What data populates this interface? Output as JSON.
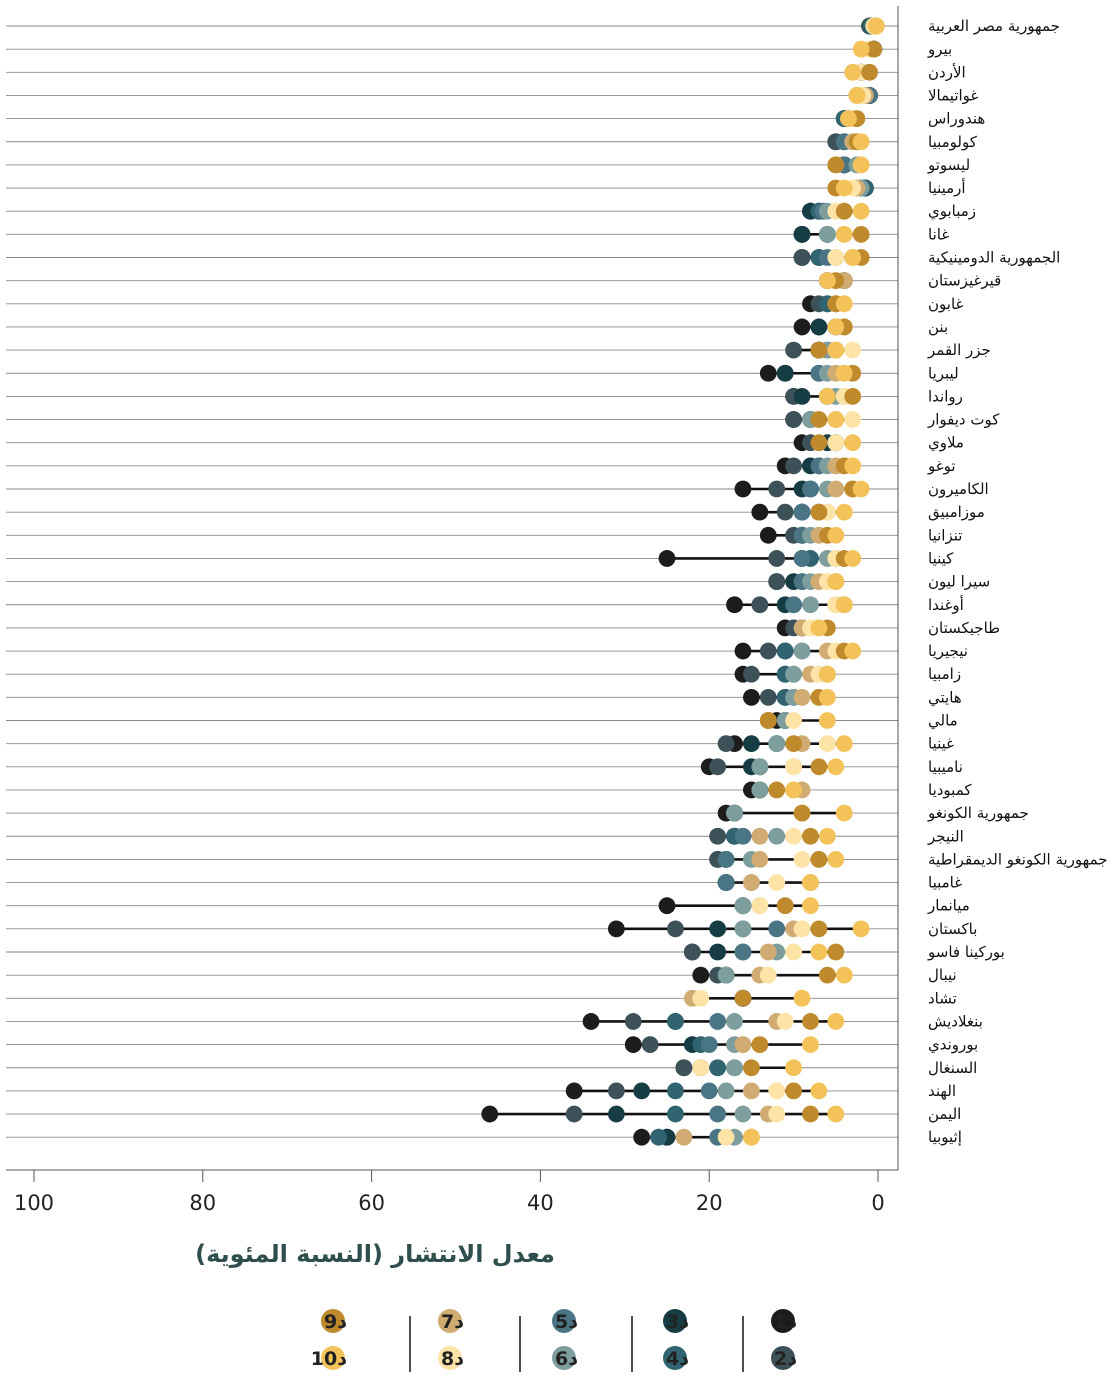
{
  "chart_data": {
    "type": "dot-range",
    "xlabel": "معدل الانتشار (النسبة المئوية)",
    "xlim": [
      0,
      100
    ],
    "x_reversed": true,
    "ticks": [
      100,
      80,
      60,
      40,
      20,
      0
    ],
    "decile_labels": [
      "د1",
      "د2",
      "د3",
      "د4",
      "د5",
      "د6",
      "د7",
      "د8",
      "د9",
      "د10"
    ],
    "decile_colors": [
      "#1c1c1c",
      "#3d5158",
      "#163d44",
      "#2f6470",
      "#4a7585",
      "#7d9e9c",
      "#d0ab72",
      "#fde3a6",
      "#bf8a2c",
      "#f3c35a"
    ],
    "countries": [
      {
        "name": "جمهورية مصر العربية",
        "values": [
          1,
          1,
          0.8,
          0.8,
          0.5,
          0.5,
          0.5,
          0.5,
          0.2,
          0.2
        ]
      },
      {
        "name": "بيرو",
        "values": [
          0.5,
          0.5,
          0.5,
          0.5,
          0.5,
          0.5,
          1,
          1,
          0.5,
          2
        ]
      },
      {
        "name": "الأردن",
        "values": [
          2,
          2,
          2,
          2,
          2,
          2,
          2,
          2,
          1,
          3
        ]
      },
      {
        "name": "غواتيمالا",
        "values": [
          1,
          1,
          1,
          1,
          1,
          1.5,
          1.5,
          1.8,
          2.5,
          2.5
        ]
      },
      {
        "name": "هندوراس",
        "values": [
          4,
          4,
          4,
          4,
          3.5,
          3.5,
          3,
          3,
          2.5,
          3.5
        ]
      },
      {
        "name": "كولومبيا",
        "values": [
          5,
          5,
          4,
          4,
          4,
          3,
          3,
          2.5,
          2.5,
          2
        ]
      },
      {
        "name": "ليسوتو",
        "values": [
          4,
          4,
          4,
          4,
          4,
          2.5,
          5,
          2,
          5,
          2
        ]
      },
      {
        "name": "أرمينيا",
        "values": [
          1.5,
          1.5,
          1.5,
          1.5,
          2,
          2,
          2.5,
          3,
          5,
          4
        ]
      },
      {
        "name": "زمبابوي",
        "values": [
          8,
          7,
          8,
          7,
          6.5,
          6,
          4,
          5,
          4,
          2
        ]
      },
      {
        "name": "غانا",
        "values": [
          9,
          9,
          9,
          6,
          6,
          6,
          4,
          4,
          2,
          4
        ]
      },
      {
        "name": "الجمهورية الدومينيكية",
        "values": [
          9,
          9,
          7,
          7,
          6,
          5,
          3,
          5,
          2,
          3
        ]
      },
      {
        "name": "قيرغيزستان",
        "values": [
          6,
          6,
          4,
          4,
          4,
          4,
          4,
          5,
          5,
          6
        ]
      },
      {
        "name": "غابون",
        "values": [
          8,
          7,
          6,
          6,
          5,
          5,
          5,
          4,
          5,
          4
        ]
      },
      {
        "name": "بنن",
        "values": [
          9,
          7,
          7,
          5,
          5,
          5,
          4,
          4,
          4,
          5
        ]
      },
      {
        "name": "جزر القمر",
        "values": [
          7,
          10,
          7,
          7,
          6,
          6,
          5,
          3,
          7,
          5
        ]
      },
      {
        "name": "ليبريا",
        "values": [
          13,
          11,
          11,
          7,
          7,
          6,
          5,
          4,
          3,
          4
        ]
      },
      {
        "name": "رواندا",
        "values": [
          10,
          10,
          9,
          6,
          6,
          5,
          4,
          4,
          3,
          6
        ]
      },
      {
        "name": "كوت ديفوار",
        "values": [
          10,
          10,
          8,
          8,
          8,
          8,
          5,
          3,
          7,
          5
        ]
      },
      {
        "name": "ملاوي",
        "values": [
          9,
          8,
          6,
          5,
          5,
          5,
          5,
          5,
          7,
          3
        ]
      },
      {
        "name": "توغو",
        "values": [
          11,
          10,
          8,
          7,
          7,
          6,
          5,
          3,
          4,
          3
        ]
      },
      {
        "name": "الكاميرون",
        "values": [
          16,
          12,
          9,
          8,
          8,
          6,
          5,
          3,
          3,
          2
        ]
      },
      {
        "name": "موزامبيق",
        "values": [
          14,
          11,
          9,
          9,
          9,
          7,
          7,
          6,
          7,
          4
        ]
      },
      {
        "name": "تنزانيا",
        "values": [
          13,
          10,
          9,
          9,
          9,
          8,
          7,
          6,
          6,
          5
        ]
      },
      {
        "name": "كينيا",
        "values": [
          25,
          12,
          9,
          8,
          9,
          6,
          5,
          5,
          4,
          3
        ]
      },
      {
        "name": "سيرا ليون",
        "values": [
          12,
          12,
          10,
          9,
          9,
          8,
          7,
          6,
          5,
          5
        ]
      },
      {
        "name": "أوغندا",
        "values": [
          17,
          14,
          11,
          10,
          10,
          8,
          5,
          5,
          4,
          4
        ]
      },
      {
        "name": "طاجيكستان",
        "values": [
          11,
          10,
          9,
          9,
          9,
          9,
          9,
          8,
          6,
          7
        ]
      },
      {
        "name": "نيجيريا",
        "values": [
          16,
          13,
          11,
          11,
          9,
          9,
          6,
          5,
          4,
          3
        ]
      },
      {
        "name": "زامبيا",
        "values": [
          16,
          15,
          11,
          11,
          10,
          10,
          8,
          7,
          6,
          6
        ]
      },
      {
        "name": "هايتي",
        "values": [
          15,
          13,
          11,
          11,
          10,
          10,
          9,
          7,
          7,
          6
        ]
      },
      {
        "name": "مالي",
        "values": [
          12,
          13,
          11,
          11,
          11,
          11,
          13,
          10,
          13,
          6
        ]
      },
      {
        "name": "غينيا",
        "values": [
          17,
          18,
          15,
          12,
          12,
          12,
          9,
          6,
          10,
          4
        ]
      },
      {
        "name": "ناميبيا",
        "values": [
          20,
          19,
          15,
          14,
          14,
          14,
          10,
          10,
          7,
          5
        ]
      },
      {
        "name": "كمبوديا",
        "values": [
          15,
          14,
          14,
          14,
          14,
          14,
          9,
          10,
          12,
          10
        ]
      },
      {
        "name": "جمهورية الكونغو",
        "values": [
          18,
          17,
          17,
          17,
          17,
          17,
          9,
          9,
          9,
          4
        ]
      },
      {
        "name": "النيجر",
        "values": [
          17,
          19,
          17,
          17,
          16,
          12,
          14,
          10,
          8,
          6
        ]
      },
      {
        "name": "جمهورية الكونغو الديمقراطية",
        "values": [
          19,
          19,
          18,
          18,
          18,
          15,
          14,
          9,
          7,
          5
        ]
      },
      {
        "name": "غامبيا",
        "values": [
          18,
          18,
          18,
          18,
          18,
          15,
          15,
          12,
          8,
          8
        ]
      },
      {
        "name": "ميانمار",
        "values": [
          25,
          16,
          16,
          16,
          16,
          16,
          14,
          14,
          11,
          8
        ]
      },
      {
        "name": "باكستان",
        "values": [
          31,
          24,
          19,
          16,
          12,
          16,
          10,
          9,
          7,
          2
        ]
      },
      {
        "name": "بوركينا فاسو",
        "values": [
          22,
          22,
          19,
          16,
          16,
          12,
          13,
          10,
          5,
          7
        ]
      },
      {
        "name": "نيبال",
        "values": [
          21,
          19,
          18,
          18,
          18,
          18,
          14,
          13,
          6,
          4
        ]
      },
      {
        "name": "تشاد",
        "values": [
          16,
          16,
          16,
          16,
          16,
          16,
          22,
          21,
          16,
          9
        ]
      },
      {
        "name": "بنغلاديش",
        "values": [
          34,
          29,
          24,
          24,
          19,
          17,
          12,
          11,
          8,
          5
        ]
      },
      {
        "name": "بوروندي",
        "values": [
          29,
          27,
          22,
          21,
          20,
          17,
          16,
          14,
          14,
          8
        ]
      },
      {
        "name": "السنغال",
        "values": [
          23,
          23,
          21,
          19,
          17,
          17,
          21,
          21,
          15,
          10
        ]
      },
      {
        "name": "الهند",
        "values": [
          36,
          31,
          28,
          24,
          20,
          18,
          15,
          12,
          10,
          7
        ]
      },
      {
        "name": "اليمن",
        "values": [
          46,
          36,
          31,
          24,
          19,
          16,
          13,
          12,
          8,
          5
        ]
      },
      {
        "name": "إثيوبيا",
        "values": [
          28,
          25,
          25,
          26,
          19,
          17,
          23,
          18,
          15,
          15
        ]
      }
    ]
  }
}
